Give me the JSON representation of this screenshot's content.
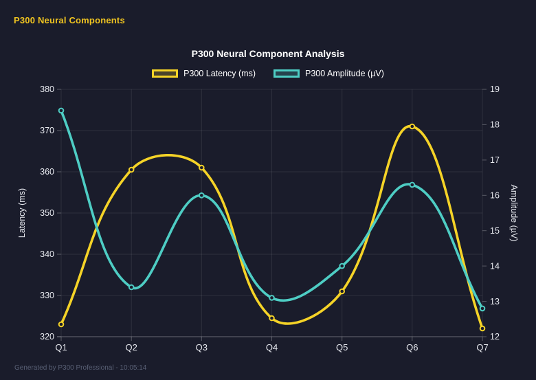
{
  "app": {
    "header_title": "P300 Neural Components",
    "footer_text": "Generated by P300 Professional - 10:05:14"
  },
  "theme": {
    "background": "#1a1c2b",
    "header_color": "#f0c420",
    "title_color": "#ffffff",
    "legend_text_color": "#ffffff",
    "tick_color": "#e6e8ee",
    "grid_color": "rgba(255,255,255,0.09)",
    "axis_line_color": "rgba(255,255,255,0.28)",
    "footer_color": "#596075"
  },
  "chart_data": {
    "type": "line",
    "title": "P300 Neural Component Analysis",
    "categories": [
      "Q1",
      "Q2",
      "Q3",
      "Q4",
      "Q5",
      "Q6",
      "Q7"
    ],
    "series": [
      {
        "name": "P300 Latency (ms)",
        "axis": "left",
        "color": "#f5d327",
        "values": [
          323,
          360.5,
          361,
          324.5,
          331,
          371,
          322
        ]
      },
      {
        "name": "P300 Amplitude (µV)",
        "axis": "right",
        "color": "#4ecdc4",
        "values": [
          18.4,
          13.4,
          16.0,
          13.1,
          14.0,
          16.3,
          12.8
        ]
      }
    ],
    "left_axis": {
      "label": "Latency (ms)",
      "min": 320,
      "max": 380,
      "step": 10
    },
    "right_axis": {
      "label": "Amplitude (µV)",
      "min": 12,
      "max": 19,
      "step": 1
    },
    "legend_position": "top",
    "grid": true,
    "curve_tension": 0.4
  }
}
